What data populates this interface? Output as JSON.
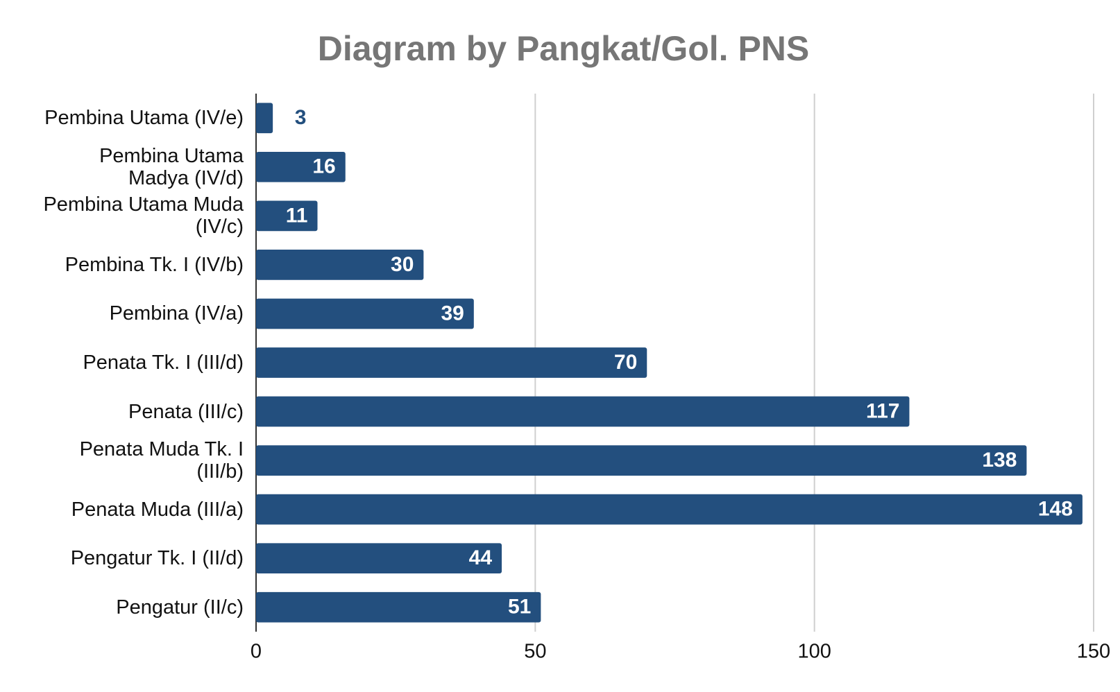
{
  "chart_data": {
    "type": "bar",
    "orientation": "horizontal",
    "title": "Diagram by Pangkat/Gol. PNS",
    "categories": [
      "Pembina Utama (IV/e)",
      "Pembina Utama Madya (IV/d)",
      "Pembina Utama Muda (IV/c)",
      "Pembina Tk. I (IV/b)",
      "Pembina (IV/a)",
      "Penata Tk. I (III/d)",
      "Penata (III/c)",
      "Penata Muda Tk. I (III/b)",
      "Penata Muda (III/a)",
      "Pengatur Tk. I (II/d)",
      "Pengatur (II/c)"
    ],
    "values": [
      3,
      16,
      11,
      30,
      39,
      70,
      117,
      138,
      148,
      44,
      51
    ],
    "color": "#234f7e",
    "xlim": [
      0,
      150
    ],
    "xticks": [
      0,
      50,
      100,
      150
    ],
    "grid": true
  }
}
